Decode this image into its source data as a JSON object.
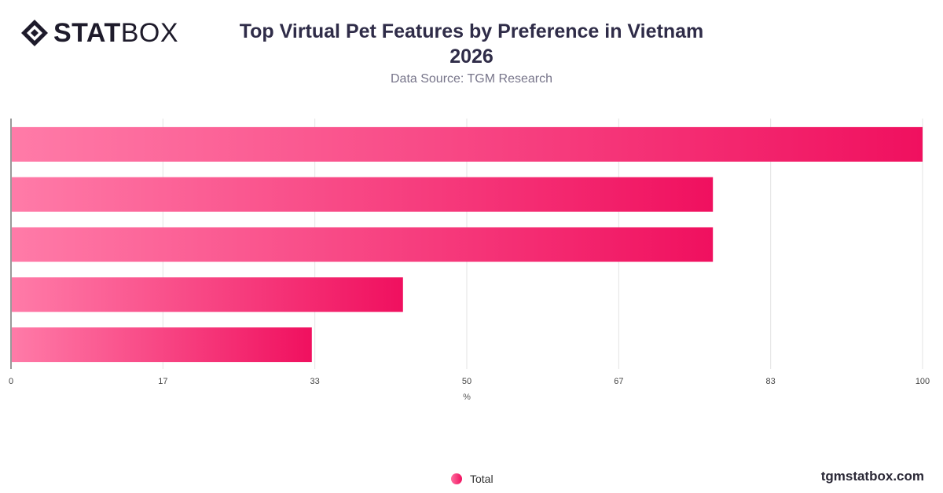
{
  "header": {
    "logo_stat": "STAT",
    "logo_box": "BOX",
    "title_line1": "Top Virtual Pet Features by Preference in Vietnam",
    "title_line2": "2026",
    "subtitle": "Data Source: TGM Research"
  },
  "footer": {
    "site": "tgmstatbox.com"
  },
  "legend": {
    "label": "Total"
  },
  "colors": {
    "bar_start": "#ff7ba8",
    "bar_end": "#f0105f",
    "grid": "#e3e3e3",
    "axis": "#333333"
  },
  "chart_data": {
    "type": "bar",
    "orientation": "horizontal",
    "title": "Top Virtual Pet Features by Preference in Vietnam 2026",
    "xlabel": "%",
    "ylabel": "",
    "xlim": [
      0,
      100
    ],
    "xticks": [
      "0",
      "17",
      "33",
      "50",
      "67",
      "83",
      "100"
    ],
    "categories": [
      "",
      "",
      "",
      "",
      ""
    ],
    "series": [
      {
        "name": "Total",
        "values": [
          100,
          77,
          77,
          43,
          33
        ]
      }
    ],
    "grid": true,
    "legend": "bottom-center"
  }
}
